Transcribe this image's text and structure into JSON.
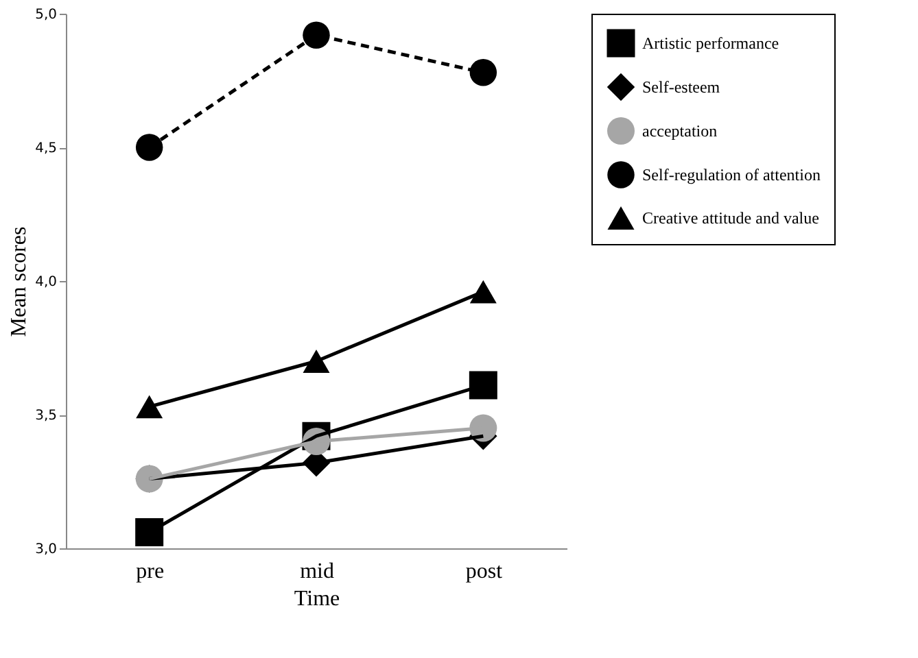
{
  "chart_data": {
    "type": "line",
    "xlabel": "Time",
    "ylabel": "Mean scores",
    "categories": [
      "pre",
      "mid",
      "post"
    ],
    "series": [
      {
        "name": "Artistic performance",
        "color": "#000000",
        "values": [
          3.06,
          3.42,
          3.61
        ],
        "marker": "square",
        "line_style": "solid"
      },
      {
        "name": "Self-esteem",
        "color": "#000000",
        "values": [
          3.26,
          3.32,
          3.42
        ],
        "marker": "diamond",
        "line_style": "solid"
      },
      {
        "name": "acceptation",
        "color": "#a6a6a6",
        "values": [
          3.26,
          3.4,
          3.45
        ],
        "marker": "circle",
        "line_style": "solid"
      },
      {
        "name": "Self-regulation of attention",
        "color": "#000000",
        "values": [
          4.5,
          4.92,
          4.78
        ],
        "marker": "circle",
        "line_style": "dashed"
      },
      {
        "name": "Creative attitude and value",
        "color": "#000000",
        "values": [
          3.53,
          3.7,
          3.96
        ],
        "marker": "triangle",
        "line_style": "solid"
      }
    ],
    "ylim": [
      3.0,
      5.0
    ],
    "yticks": [
      {
        "value": 3.0,
        "label": "3,0"
      },
      {
        "value": 3.5,
        "label": "3,5"
      },
      {
        "value": 4.0,
        "label": "4,0"
      },
      {
        "value": 4.5,
        "label": "4,5"
      },
      {
        "value": 5.0,
        "label": "5,0"
      }
    ],
    "grid": false,
    "legend": "top right"
  }
}
